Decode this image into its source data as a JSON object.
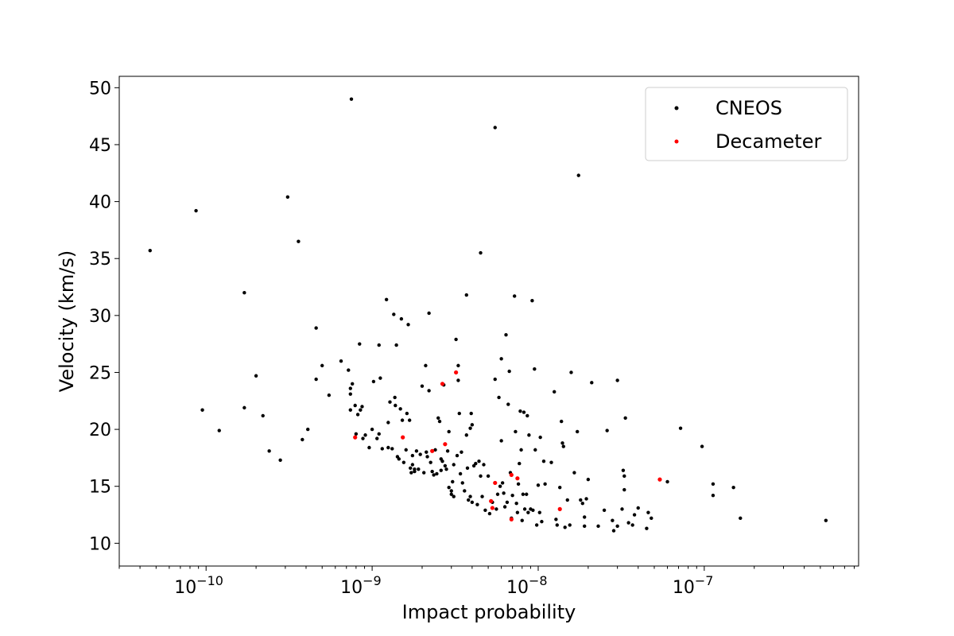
{
  "chart_data": {
    "type": "scatter",
    "xlabel": "Impact probability",
    "ylabel": "Velocity (km/s)",
    "xscale": "log",
    "xlim": [
      3e-11,
      8.5e-07
    ],
    "ylim": [
      8,
      51
    ],
    "x_ticks": [
      {
        "value": 1e-10,
        "label": "10",
        "exp": "−10"
      },
      {
        "value": 1e-09,
        "label": "10",
        "exp": "−9"
      },
      {
        "value": 1e-08,
        "label": "10",
        "exp": "−8"
      },
      {
        "value": 1e-07,
        "label": "10",
        "exp": "−7"
      }
    ],
    "y_ticks": [
      10,
      15,
      20,
      25,
      30,
      35,
      40,
      45,
      50
    ],
    "grid": false,
    "legend": {
      "position": "top-right",
      "entries": [
        "CNEOS",
        "Decameter"
      ]
    },
    "series": [
      {
        "name": "CNEOS",
        "color": "#000000",
        "points": [
          [
            4.6e-11,
            35.7
          ],
          [
            8.7e-11,
            39.2
          ],
          [
            9.5e-11,
            21.7
          ],
          [
            1.2e-10,
            19.9
          ],
          [
            1.7e-10,
            32.0
          ],
          [
            1.7e-10,
            21.9
          ],
          [
            2e-10,
            24.7
          ],
          [
            2.2e-10,
            21.2
          ],
          [
            2.4e-10,
            18.1
          ],
          [
            2.8e-10,
            17.3
          ],
          [
            3.1e-10,
            40.4
          ],
          [
            3.6e-10,
            36.5
          ],
          [
            3.8e-10,
            19.1
          ],
          [
            4.1e-10,
            20.0
          ],
          [
            4.6e-10,
            28.9
          ],
          [
            4.6e-10,
            24.4
          ],
          [
            5e-10,
            25.6
          ],
          [
            5.5e-10,
            23.0
          ],
          [
            6.5e-10,
            26.0
          ],
          [
            7.2e-10,
            25.2
          ],
          [
            7.4e-10,
            23.6
          ],
          [
            7.4e-10,
            23.1
          ],
          [
            7.4e-10,
            21.7
          ],
          [
            7.5e-10,
            49.0
          ],
          [
            7.6e-10,
            24.0
          ],
          [
            7.9e-10,
            22.1
          ],
          [
            8e-10,
            19.6
          ],
          [
            8.2e-10,
            21.3
          ],
          [
            8.4e-10,
            27.5
          ],
          [
            8.5e-10,
            21.7
          ],
          [
            8.7e-10,
            22.0
          ],
          [
            8.8e-10,
            19.2
          ],
          [
            9.1e-10,
            19.5
          ],
          [
            9.6e-10,
            18.4
          ],
          [
            1e-09,
            20.0
          ],
          [
            1.02e-09,
            24.2
          ],
          [
            1.07e-09,
            19.2
          ],
          [
            1.1e-09,
            27.4
          ],
          [
            1.1e-09,
            19.6
          ],
          [
            1.12e-09,
            24.5
          ],
          [
            1.15e-09,
            18.3
          ],
          [
            1.22e-09,
            31.4
          ],
          [
            1.25e-09,
            18.4
          ],
          [
            1.25e-09,
            20.6
          ],
          [
            1.28e-09,
            22.4
          ],
          [
            1.32e-09,
            18.3
          ],
          [
            1.35e-09,
            30.1
          ],
          [
            1.37e-09,
            22.8
          ],
          [
            1.38e-09,
            22.1
          ],
          [
            1.4e-09,
            27.4
          ],
          [
            1.42e-09,
            17.6
          ],
          [
            1.45e-09,
            17.4
          ],
          [
            1.48e-09,
            21.8
          ],
          [
            1.5e-09,
            29.7
          ],
          [
            1.52e-09,
            20.8
          ],
          [
            1.55e-09,
            17.1
          ],
          [
            1.6e-09,
            18.2
          ],
          [
            1.62e-09,
            21.4
          ],
          [
            1.65e-09,
            29.2
          ],
          [
            1.68e-09,
            20.8
          ],
          [
            1.7e-09,
            16.6
          ],
          [
            1.72e-09,
            16.2
          ],
          [
            1.75e-09,
            17.7
          ],
          [
            1.75e-09,
            16.9
          ],
          [
            1.8e-09,
            16.5
          ],
          [
            1.8e-09,
            16.3
          ],
          [
            1.85e-09,
            18.1
          ],
          [
            1.9e-09,
            16.5
          ],
          [
            1.95e-09,
            17.8
          ],
          [
            2e-09,
            23.8
          ],
          [
            2.05e-09,
            16.2
          ],
          [
            2.1e-09,
            25.6
          ],
          [
            2.12e-09,
            18.0
          ],
          [
            2.15e-09,
            17.6
          ],
          [
            2.2e-09,
            30.2
          ],
          [
            2.2e-09,
            23.4
          ],
          [
            2.25e-09,
            17.1
          ],
          [
            2.3e-09,
            16.3
          ],
          [
            2.35e-09,
            16.0
          ],
          [
            2.4e-09,
            18.2
          ],
          [
            2.45e-09,
            16.1
          ],
          [
            2.5e-09,
            21.0
          ],
          [
            2.55e-09,
            20.7
          ],
          [
            2.6e-09,
            17.4
          ],
          [
            2.6e-09,
            16.4
          ],
          [
            2.65e-09,
            17.2
          ],
          [
            2.7e-09,
            23.9
          ],
          [
            2.75e-09,
            16.8
          ],
          [
            2.8e-09,
            16.5
          ],
          [
            2.85e-09,
            18.1
          ],
          [
            2.9e-09,
            14.9
          ],
          [
            2.9e-09,
            19.8
          ],
          [
            3e-09,
            14.6
          ],
          [
            3e-09,
            14.3
          ],
          [
            3.05e-09,
            15.4
          ],
          [
            3.1e-09,
            14.1
          ],
          [
            3.1e-09,
            16.9
          ],
          [
            3.2e-09,
            27.9
          ],
          [
            3.25e-09,
            17.7
          ],
          [
            3.3e-09,
            25.6
          ],
          [
            3.3e-09,
            24.3
          ],
          [
            3.35e-09,
            21.4
          ],
          [
            3.4e-09,
            16.1
          ],
          [
            3.45e-09,
            18.0
          ],
          [
            3.5e-09,
            15.3
          ],
          [
            3.6e-09,
            14.6
          ],
          [
            3.7e-09,
            31.8
          ],
          [
            3.7e-09,
            19.5
          ],
          [
            3.75e-09,
            16.6
          ],
          [
            3.8e-09,
            13.8
          ],
          [
            3.9e-09,
            14.1
          ],
          [
            3.9e-09,
            20.1
          ],
          [
            3.95e-09,
            21.4
          ],
          [
            4e-09,
            13.6
          ],
          [
            4e-09,
            20.4
          ],
          [
            4.1e-09,
            16.8
          ],
          [
            4.2e-09,
            17.0
          ],
          [
            4.3e-09,
            13.4
          ],
          [
            4.4e-09,
            17.2
          ],
          [
            4.5e-09,
            35.5
          ],
          [
            4.5e-09,
            15.9
          ],
          [
            4.6e-09,
            14.1
          ],
          [
            4.7e-09,
            16.9
          ],
          [
            4.8e-09,
            12.9
          ],
          [
            5e-09,
            15.9
          ],
          [
            5.1e-09,
            12.6
          ],
          [
            5.3e-09,
            13.6
          ],
          [
            5.5e-09,
            46.5
          ],
          [
            5.5e-09,
            24.4
          ],
          [
            5.6e-09,
            13.0
          ],
          [
            5.7e-09,
            14.3
          ],
          [
            5.8e-09,
            22.8
          ],
          [
            5.9e-09,
            15.0
          ],
          [
            6e-09,
            26.2
          ],
          [
            6e-09,
            19.0
          ],
          [
            6.1e-09,
            15.3
          ],
          [
            6.2e-09,
            14.4
          ],
          [
            6.3e-09,
            13.2
          ],
          [
            6.4e-09,
            28.3
          ],
          [
            6.5e-09,
            13.6
          ],
          [
            6.6e-09,
            22.2
          ],
          [
            6.7e-09,
            25.1
          ],
          [
            6.8e-09,
            16.2
          ],
          [
            6.9e-09,
            12.2
          ],
          [
            7e-09,
            14.2
          ],
          [
            7.2e-09,
            31.7
          ],
          [
            7.3e-09,
            19.8
          ],
          [
            7.4e-09,
            13.5
          ],
          [
            7.5e-09,
            12.7
          ],
          [
            7.6e-09,
            15.2
          ],
          [
            7.7e-09,
            17.0
          ],
          [
            7.8e-09,
            21.6
          ],
          [
            7.9e-09,
            18.2
          ],
          [
            8e-09,
            12.0
          ],
          [
            8.1e-09,
            14.3
          ],
          [
            8.2e-09,
            21.5
          ],
          [
            8.3e-09,
            13.0
          ],
          [
            8.5e-09,
            14.3
          ],
          [
            8.6e-09,
            21.2
          ],
          [
            8.7e-09,
            12.7
          ],
          [
            8.8e-09,
            19.5
          ],
          [
            9e-09,
            13.0
          ],
          [
            9.2e-09,
            31.3
          ],
          [
            9.3e-09,
            12.9
          ],
          [
            9.5e-09,
            25.3
          ],
          [
            9.6e-09,
            18.2
          ],
          [
            9.8e-09,
            11.6
          ],
          [
            1e-08,
            15.1
          ],
          [
            1.02e-08,
            12.7
          ],
          [
            1.03e-08,
            19.3
          ],
          [
            1.05e-08,
            11.9
          ],
          [
            1.08e-08,
            17.2
          ],
          [
            1.1e-08,
            15.2
          ],
          [
            1.2e-08,
            17.1
          ],
          [
            1.25e-08,
            23.3
          ],
          [
            1.28e-08,
            12.1
          ],
          [
            1.3e-08,
            11.6
          ],
          [
            1.35e-08,
            14.9
          ],
          [
            1.38e-08,
            20.7
          ],
          [
            1.4e-08,
            18.8
          ],
          [
            1.42e-08,
            18.5
          ],
          [
            1.45e-08,
            11.4
          ],
          [
            1.5e-08,
            13.8
          ],
          [
            1.55e-08,
            11.6
          ],
          [
            1.58e-08,
            25.0
          ],
          [
            1.65e-08,
            16.2
          ],
          [
            1.72e-08,
            19.8
          ],
          [
            1.75e-08,
            42.3
          ],
          [
            1.8e-08,
            13.8
          ],
          [
            1.85e-08,
            13.5
          ],
          [
            1.9e-08,
            12.3
          ],
          [
            1.9e-08,
            11.5
          ],
          [
            1.95e-08,
            13.9
          ],
          [
            2e-08,
            15.6
          ],
          [
            2.1e-08,
            24.1
          ],
          [
            2.3e-08,
            11.5
          ],
          [
            2.5e-08,
            12.9
          ],
          [
            2.6e-08,
            19.9
          ],
          [
            2.8e-08,
            12.0
          ],
          [
            2.85e-08,
            11.1
          ],
          [
            3e-08,
            11.5
          ],
          [
            3e-08,
            24.3
          ],
          [
            3.2e-08,
            13.0
          ],
          [
            3.25e-08,
            16.4
          ],
          [
            3.3e-08,
            15.9
          ],
          [
            3.3e-08,
            14.7
          ],
          [
            3.35e-08,
            21.0
          ],
          [
            3.5e-08,
            11.8
          ],
          [
            3.7e-08,
            11.6
          ],
          [
            3.8e-08,
            12.5
          ],
          [
            4e-08,
            13.1
          ],
          [
            4.5e-08,
            11.3
          ],
          [
            4.6e-08,
            12.7
          ],
          [
            4.8e-08,
            12.2
          ],
          [
            6e-08,
            15.4
          ],
          [
            7.2e-08,
            20.1
          ],
          [
            9.7e-08,
            18.5
          ],
          [
            1.13e-07,
            15.2
          ],
          [
            1.13e-07,
            14.2
          ],
          [
            1.5e-07,
            14.9
          ],
          [
            1.65e-07,
            12.2
          ],
          [
            5.4e-07,
            12.0
          ]
        ]
      },
      {
        "name": "Decameter",
        "color": "#ff0000",
        "points": [
          [
            7.9e-10,
            19.3
          ],
          [
            1.53e-09,
            19.3
          ],
          [
            2.3e-09,
            18.1
          ],
          [
            2.65e-09,
            24.0
          ],
          [
            2.75e-09,
            18.7
          ],
          [
            3.2e-09,
            25.0
          ],
          [
            5.2e-09,
            13.7
          ],
          [
            5.3e-09,
            13.1
          ],
          [
            5.5e-09,
            15.3
          ],
          [
            6.9e-09,
            12.1
          ],
          [
            6.9e-09,
            16.0
          ],
          [
            7.5e-09,
            15.7
          ],
          [
            1.35e-08,
            13.0
          ],
          [
            5.4e-08,
            15.6
          ]
        ]
      }
    ]
  }
}
